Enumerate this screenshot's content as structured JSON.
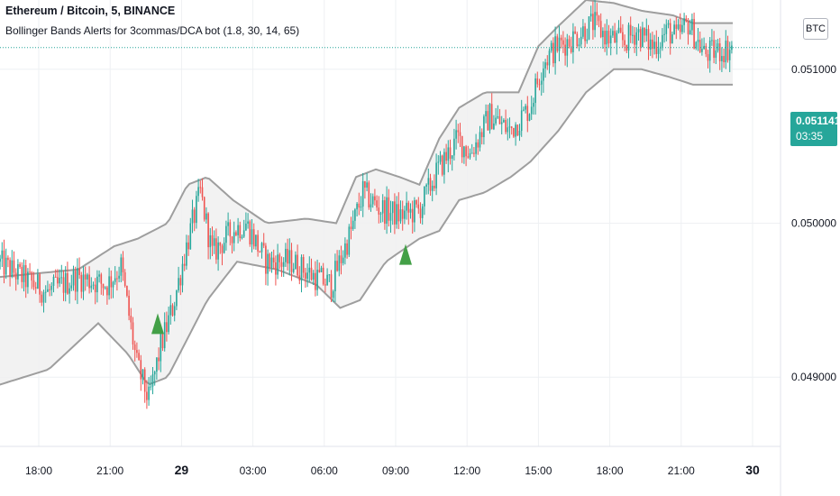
{
  "header": {
    "symbol_line": "Ethereum / Bitcoin, 5, BINANCE",
    "indicator_line": "Bollinger Bands Alerts for 3commas/DCA bot (1.8, 30, 14, 65)"
  },
  "scale_badge": "BTC",
  "last_price": {
    "value": "0.051141",
    "countdown": "03:35"
  },
  "colors": {
    "up": "#26a69a",
    "down": "#ef5350",
    "band": "#9e9e9e",
    "band_fill": "#f0f0f0",
    "signal": "#43a047",
    "grid": "#eef0f3"
  },
  "chart_data": {
    "type": "candlestick",
    "x_ticks": [
      "18:00",
      "21:00",
      "29",
      "03:00",
      "06:00",
      "09:00",
      "12:00",
      "15:00",
      "18:00",
      "21:00",
      "30"
    ],
    "y_ticks": [
      "0.051000",
      "0.050000",
      "0.049000"
    ],
    "y_tick_values": [
      0.051,
      0.05,
      0.049
    ],
    "ylim": [
      0.04855,
      0.05145
    ],
    "x_tick_bar_index": [
      20,
      56,
      92,
      128,
      164,
      200,
      236,
      272,
      308,
      344,
      380
    ],
    "bar_count": 370,
    "price_path": [
      [
        0,
        0.04975
      ],
      [
        12,
        0.04965
      ],
      [
        25,
        0.04955
      ],
      [
        40,
        0.04965
      ],
      [
        55,
        0.0496
      ],
      [
        62,
        0.04972
      ],
      [
        70,
        0.04908
      ],
      [
        76,
        0.04885
      ],
      [
        82,
        0.0492
      ],
      [
        88,
        0.04945
      ],
      [
        95,
        0.04985
      ],
      [
        102,
        0.0502
      ],
      [
        108,
        0.0498
      ],
      [
        118,
        0.04995
      ],
      [
        125,
        0.05
      ],
      [
        135,
        0.04975
      ],
      [
        148,
        0.04975
      ],
      [
        160,
        0.04965
      ],
      [
        168,
        0.0496
      ],
      [
        178,
        0.04995
      ],
      [
        184,
        0.0502
      ],
      [
        192,
        0.0501
      ],
      [
        202,
        0.05005
      ],
      [
        212,
        0.05008
      ],
      [
        222,
        0.05035
      ],
      [
        232,
        0.05055
      ],
      [
        238,
        0.05045
      ],
      [
        248,
        0.0507
      ],
      [
        258,
        0.0506
      ],
      [
        268,
        0.05075
      ],
      [
        275,
        0.05105
      ],
      [
        282,
        0.05115
      ],
      [
        290,
        0.0512
      ],
      [
        300,
        0.0513
      ],
      [
        308,
        0.0512
      ],
      [
        316,
        0.05118
      ],
      [
        322,
        0.05125
      ],
      [
        330,
        0.05115
      ],
      [
        338,
        0.05125
      ],
      [
        342,
        0.0512
      ],
      [
        348,
        0.0513
      ],
      [
        356,
        0.0511
      ],
      [
        364,
        0.05112
      ],
      [
        370,
        0.05114
      ]
    ],
    "upper_band": [
      [
        0,
        0.04965
      ],
      [
        40,
        0.0497
      ],
      [
        58,
        0.04985
      ],
      [
        70,
        0.0499
      ],
      [
        85,
        0.05
      ],
      [
        95,
        0.05025
      ],
      [
        105,
        0.0503
      ],
      [
        118,
        0.05015
      ],
      [
        135,
        0.05
      ],
      [
        155,
        0.05003
      ],
      [
        170,
        0.05
      ],
      [
        180,
        0.0503
      ],
      [
        190,
        0.05035
      ],
      [
        202,
        0.0503
      ],
      [
        212,
        0.05025
      ],
      [
        222,
        0.05055
      ],
      [
        232,
        0.05075
      ],
      [
        245,
        0.05085
      ],
      [
        262,
        0.05085
      ],
      [
        272,
        0.05115
      ],
      [
        282,
        0.05128
      ],
      [
        296,
        0.05145
      ],
      [
        310,
        0.05143
      ],
      [
        324,
        0.05138
      ],
      [
        340,
        0.05135
      ],
      [
        350,
        0.0513
      ],
      [
        370,
        0.0513
      ]
    ],
    "lower_band": [
      [
        0,
        0.04895
      ],
      [
        25,
        0.04905
      ],
      [
        50,
        0.04935
      ],
      [
        65,
        0.04915
      ],
      [
        75,
        0.04895
      ],
      [
        85,
        0.049
      ],
      [
        95,
        0.04925
      ],
      [
        105,
        0.0495
      ],
      [
        120,
        0.04975
      ],
      [
        140,
        0.0497
      ],
      [
        160,
        0.0496
      ],
      [
        172,
        0.04945
      ],
      [
        182,
        0.0495
      ],
      [
        195,
        0.04975
      ],
      [
        212,
        0.0499
      ],
      [
        222,
        0.04995
      ],
      [
        232,
        0.05015
      ],
      [
        245,
        0.0502
      ],
      [
        258,
        0.0503
      ],
      [
        268,
        0.0504
      ],
      [
        282,
        0.0506
      ],
      [
        296,
        0.05085
      ],
      [
        310,
        0.051
      ],
      [
        324,
        0.051
      ],
      [
        338,
        0.05095
      ],
      [
        350,
        0.0509
      ],
      [
        370,
        0.0509
      ]
    ],
    "signals": [
      {
        "type": "buy",
        "bar_index": 80,
        "price": 0.04945
      },
      {
        "type": "buy",
        "bar_index": 205,
        "price": 0.0499
      }
    ],
    "last_price": 0.051141
  }
}
